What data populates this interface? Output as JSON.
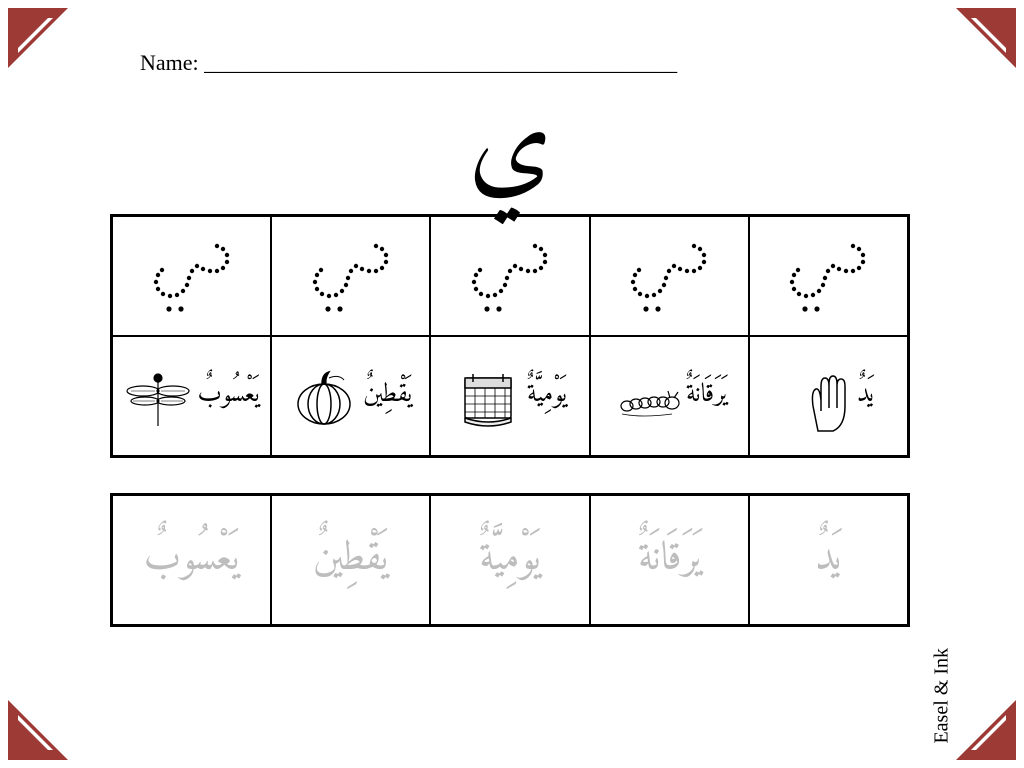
{
  "corner_color": "#9d3a35",
  "name_label": "Name: ___________________________________________",
  "featured_letter": "ي",
  "trace_row_count": 5,
  "vocab": [
    {
      "word": "يَعْسُوبٌ",
      "illus": "dragonfly"
    },
    {
      "word": "يَقْطِينٌ",
      "illus": "pumpkin"
    },
    {
      "word": "يَوْمِيَّةٌ",
      "illus": "calendar"
    },
    {
      "word": "يَرَقَانَةٌ",
      "illus": "caterpillar"
    },
    {
      "word": "يَدٌ",
      "illus": "hand"
    }
  ],
  "trace_words": [
    "يَعْسُوبٌ",
    "يَقْطِينٌ",
    "يَوْمِيَّةٌ",
    "يَرَقَانَةٌ",
    "يَدٌ"
  ],
  "watermark": "Easel & Ink"
}
